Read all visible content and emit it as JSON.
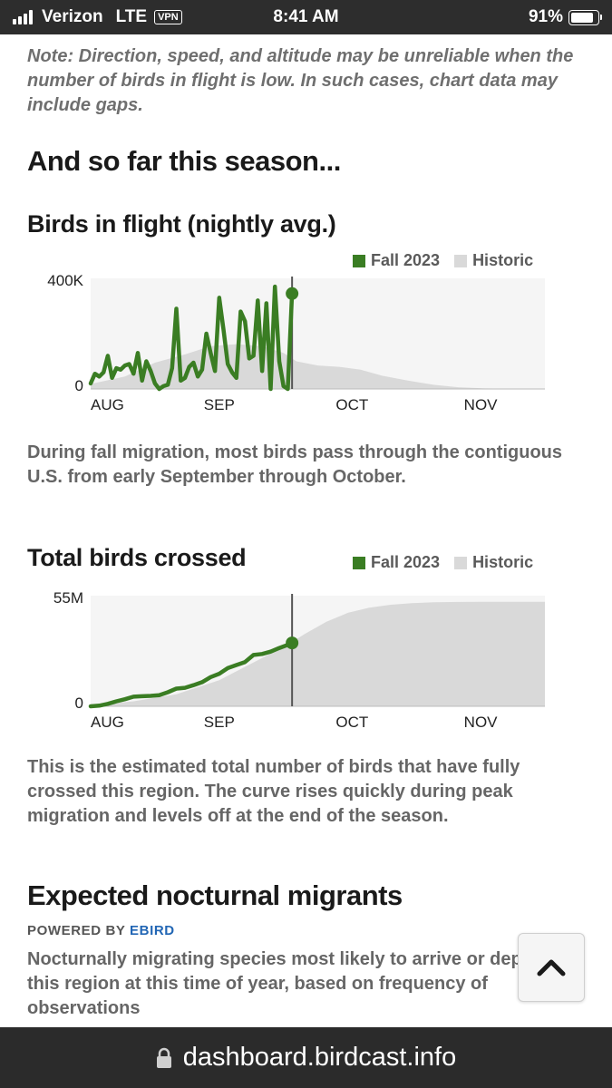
{
  "status_bar": {
    "carrier": "Verizon",
    "network": "LTE",
    "vpn": "VPN",
    "time": "8:41 AM",
    "battery": "91%"
  },
  "note": "Note: Direction, speed, and altitude may be unreliable when the number of birds in flight is low. In such cases, chart data may include gaps.",
  "section_title": "And so far this season...",
  "colors": {
    "fall": "#3a7d23",
    "historic": "#d9d9d9",
    "plot_bg": "#f5f5f5"
  },
  "chart_data": [
    {
      "type": "area",
      "title": "Birds in flight (nightly avg.)",
      "legend": [
        "Fall 2023",
        "Historic"
      ],
      "legend_position": "top-right",
      "x_ticks": [
        "AUG",
        "SEP",
        "OCT",
        "NOV"
      ],
      "y_ticks": [
        "400K",
        "0"
      ],
      "ylim": [
        0,
        400000
      ],
      "xlim": [
        0,
        106
      ],
      "series": [
        {
          "name": "Historic",
          "kind": "area",
          "x": [
            0,
            8,
            15,
            22,
            28,
            34,
            40,
            45,
            48,
            53,
            58,
            63,
            68,
            74,
            80,
            86,
            92,
            98,
            104,
            106
          ],
          "values": [
            18000,
            45000,
            95000,
            125000,
            155000,
            162000,
            155000,
            130000,
            100000,
            85000,
            80000,
            70000,
            48000,
            30000,
            15000,
            6000,
            2000,
            1000,
            0,
            0
          ]
        },
        {
          "name": "Fall 2023",
          "kind": "line",
          "x": [
            0,
            1,
            2,
            3,
            4,
            5,
            6,
            7,
            8,
            9,
            10,
            11,
            12,
            13,
            14,
            15,
            16,
            17,
            18,
            19,
            20,
            21,
            22,
            23,
            24,
            25,
            26,
            27,
            28,
            29,
            30,
            31,
            32,
            33,
            34,
            35,
            36,
            37,
            38,
            39,
            40,
            41,
            42,
            43,
            44,
            45,
            46,
            47
          ],
          "values": [
            20000,
            55000,
            45000,
            60000,
            120000,
            40000,
            75000,
            70000,
            85000,
            90000,
            55000,
            130000,
            30000,
            100000,
            65000,
            20000,
            0,
            10000,
            15000,
            75000,
            290000,
            30000,
            40000,
            80000,
            95000,
            45000,
            70000,
            200000,
            130000,
            65000,
            330000,
            215000,
            90000,
            60000,
            40000,
            280000,
            245000,
            110000,
            120000,
            320000,
            65000,
            310000,
            0,
            370000,
            100000,
            10000,
            0,
            345000
          ]
        }
      ],
      "today_x": 47
    },
    {
      "type": "area",
      "title": "Total birds crossed",
      "legend": [
        "Fall 2023",
        "Historic"
      ],
      "legend_position": "top-right",
      "x_ticks": [
        "AUG",
        "SEP",
        "OCT",
        "NOV"
      ],
      "y_ticks": [
        "55M",
        "0"
      ],
      "ylim": [
        0,
        55000000
      ],
      "xlim": [
        0,
        106
      ],
      "series": [
        {
          "name": "Historic",
          "kind": "area",
          "x": [
            0,
            10,
            20,
            30,
            40,
            47,
            50,
            55,
            60,
            65,
            70,
            75,
            80,
            86,
            92,
            98,
            106
          ],
          "values": [
            500000,
            2500000,
            6000000,
            13000000,
            24000000,
            32000000,
            36000000,
            42000000,
            46500000,
            49000000,
            50500000,
            51300000,
            51700000,
            51900000,
            52000000,
            52000000,
            52000000
          ]
        },
        {
          "name": "Fall 2023",
          "kind": "line",
          "x": [
            0,
            2,
            4,
            6,
            8,
            10,
            12,
            14,
            16,
            18,
            20,
            22,
            24,
            26,
            28,
            30,
            32,
            34,
            36,
            38,
            40,
            42,
            44,
            46,
            47
          ],
          "values": [
            0,
            300000,
            1200000,
            2500000,
            3500000,
            4800000,
            5000000,
            5200000,
            5500000,
            7000000,
            8800000,
            9200000,
            10500000,
            12000000,
            14500000,
            16200000,
            19000000,
            20500000,
            22000000,
            25500000,
            26000000,
            27200000,
            29000000,
            30500000,
            31500000
          ]
        }
      ],
      "today_x": 47
    }
  ],
  "para_flight": "During fall migration, most birds pass through the contiguous U.S. from early September through October.",
  "para_crossed": "This is the estimated total number of birds that have fully crossed this region. The curve rises quickly during peak migration and levels off at the end of the season.",
  "migrants": {
    "title": "Expected nocturnal migrants",
    "powered_by": "POWERED BY",
    "powered_link": "EBIRD",
    "description": "Nocturnally migrating species most likely to arrive or depart this region at this time of year, based on frequency of observations"
  },
  "url_bar": {
    "url": "dashboard.birdcast.info",
    "icon": "lock-icon"
  },
  "scroll_top": {
    "icon": "chevron-up-icon"
  }
}
